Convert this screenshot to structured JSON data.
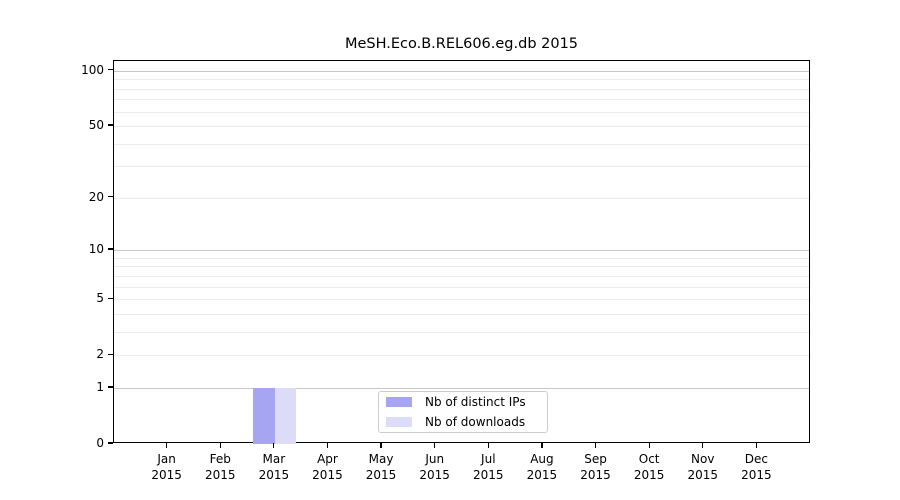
{
  "chart_data": {
    "type": "bar",
    "title": "MeSH.Eco.B.REL606.eg.db 2015",
    "categories": [
      "Jan",
      "Feb",
      "Mar",
      "Apr",
      "May",
      "Jun",
      "Jul",
      "Aug",
      "Sep",
      "Oct",
      "Nov",
      "Dec"
    ],
    "category_year": "2015",
    "series": [
      {
        "name": "Nb of distinct IPs",
        "color": "#a5a5f2",
        "values": [
          0,
          0,
          1,
          0,
          0,
          0,
          0,
          0,
          0,
          0,
          0,
          0
        ]
      },
      {
        "name": "Nb of downloads",
        "color": "#dcdcf9",
        "values": [
          0,
          0,
          1,
          0,
          0,
          0,
          0,
          0,
          0,
          0,
          0,
          0
        ]
      }
    ],
    "y_axis": {
      "scale": "log1p",
      "tick_labels": [
        0,
        1,
        2,
        5,
        10,
        20,
        50,
        100
      ],
      "major_gridlines": [
        1,
        10,
        100
      ],
      "minor_gridlines": [
        2,
        3,
        4,
        5,
        6,
        7,
        8,
        9,
        20,
        30,
        40,
        50,
        60,
        70,
        80,
        90
      ],
      "ylim": [
        0,
        113
      ]
    },
    "legend": {
      "position": "inside-bottom-center",
      "items": [
        "Nb of distinct IPs",
        "Nb of downloads"
      ]
    },
    "grid": "horizontal",
    "colors": {
      "major_grid": "#c6c6c6",
      "minor_grid": "#ebebeb",
      "axis": "#000000",
      "text": "#000000",
      "legend_border": "#cccccc",
      "background": "#ffffff"
    }
  }
}
